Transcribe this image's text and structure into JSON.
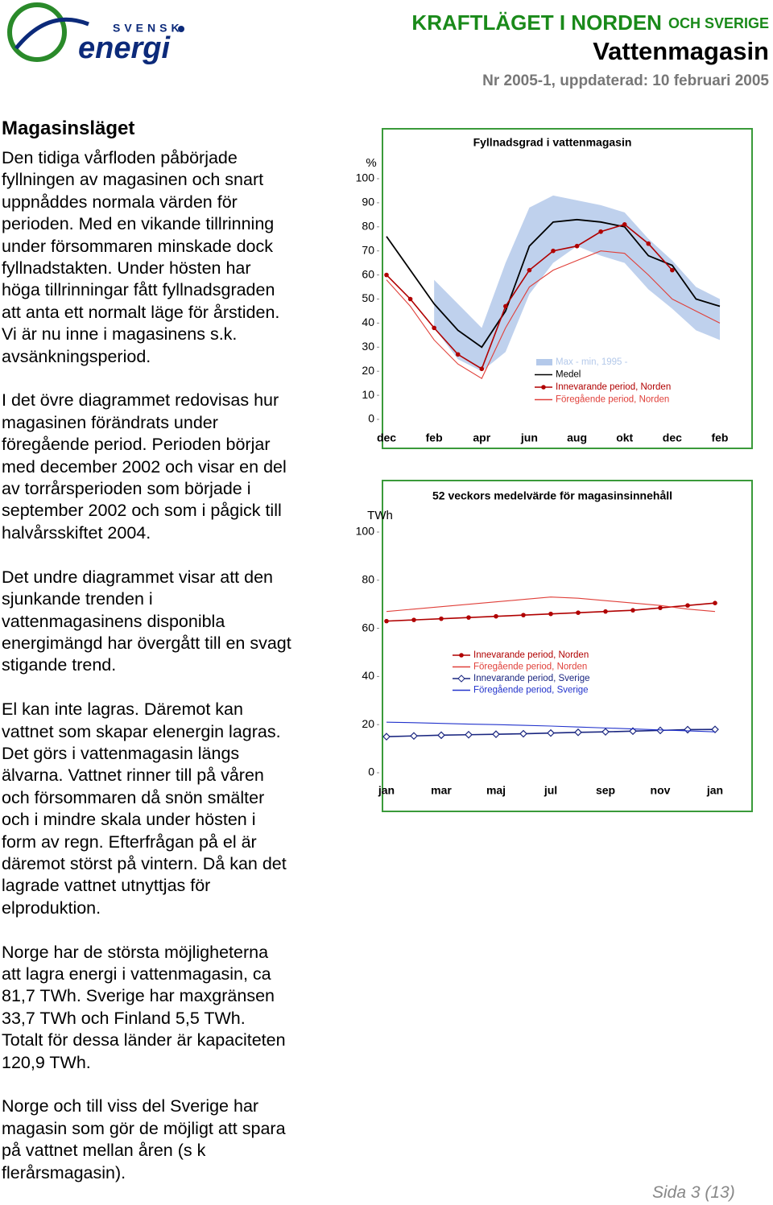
{
  "header": {
    "logo_top": "SVENSK",
    "logo_bottom": "energi",
    "title": "KRAFTLÄGET I NORDEN",
    "title_suffix": "OCH SVERIGE",
    "subtitle": "Vattenmagasin",
    "issue": "Nr 2005-1, uppdaterad: 10 februari 2005"
  },
  "body": {
    "heading": "Magasinsläget",
    "paragraphs": [
      [
        "Den tidiga vårfloden påbörjade",
        "fyllningen av magasinen och snart",
        "uppnåddes normala värden för",
        "perioden. Med en vikande tillrinning",
        "under försommaren minskade dock",
        "fyllnadstakten. Under hösten har",
        "höga tillrinningar fått fyllnadsgraden",
        "att anta ett normalt läge för årstiden.",
        "Vi är nu inne i magasinens s.k.",
        "avsänkningsperiod."
      ],
      [
        "I det övre diagrammet redovisas hur",
        "magasinen förändrats under",
        "föregående period. Perioden börjar",
        "med december 2002 och visar en del",
        "av torrårsperioden som började i",
        "september 2002 och som i pågick till",
        "halvårsskiftet 2004."
      ],
      [
        "Det undre diagrammet visar att den",
        "sjunkande trenden i",
        "vattenmagasinens disponibla",
        "energimängd har övergått till en svagt",
        "stigande trend."
      ],
      [
        "El kan inte lagras. Däremot kan",
        "vattnet som skapar elenergin lagras.",
        "Det görs i vattenmagasin längs",
        "älvarna. Vattnet rinner till på våren",
        "och försommaren då snön smälter",
        "och i mindre skala under hösten i",
        "form av regn. Efterfrågan på el är",
        "däremot störst på vintern. Då kan det",
        "lagrade vattnet utnyttjas för",
        "elproduktion."
      ],
      [
        "Norge har de största möjligheterna",
        "att lagra energi i vattenmagasin, ca",
        "81,7 TWh. Sverige har maxgränsen",
        "33,7 TWh och Finland 5,5 TWh.",
        "Totalt för dessa länder är kapaciteten",
        "120,9 TWh."
      ],
      [
        "Norge och till viss del Sverige har",
        "magasin som gör de möjligt att spara",
        "på vattnet mellan åren (s k",
        "flerårsmagasin)."
      ]
    ]
  },
  "footer": {
    "page": "Sida 3 (13)"
  },
  "chart_data": [
    {
      "type": "line",
      "title": "Fyllnadsgrad i vattenmagasin",
      "ylabel": "%",
      "categories": [
        "dec",
        null,
        "feb",
        null,
        "apr",
        null,
        "jun",
        null,
        "aug",
        null,
        "okt",
        null,
        "dec",
        null,
        "feb"
      ],
      "ylim": [
        0,
        100
      ],
      "yticks": [
        0,
        10,
        20,
        30,
        40,
        50,
        60,
        70,
        80,
        90,
        100
      ],
      "band": {
        "name": "Max - min, 1995 -",
        "color": "#b4c9ea",
        "max": [
          null,
          null,
          58,
          48,
          38,
          65,
          88,
          93,
          91,
          89,
          86,
          75,
          66,
          55,
          50
        ],
        "min": [
          null,
          null,
          38,
          25,
          20,
          28,
          52,
          65,
          72,
          68,
          65,
          54,
          46,
          37,
          33
        ]
      },
      "series": [
        {
          "name": "Medel",
          "color": "#000000",
          "values": [
            76,
            62,
            48,
            37,
            30,
            45,
            72,
            82,
            83,
            82,
            80,
            68,
            64,
            50,
            47
          ]
        },
        {
          "name": "Innevarande period, Norden",
          "color": "#b00000",
          "marker": "circle",
          "values": [
            60,
            50,
            38,
            27,
            21,
            47,
            62,
            70,
            72,
            78,
            81,
            73,
            62,
            null,
            null
          ]
        },
        {
          "name": "Föregående period, Norden",
          "color": "#e0403a",
          "values": [
            58,
            47,
            33,
            23,
            17,
            38,
            55,
            62,
            66,
            70,
            69,
            60,
            50,
            45,
            40
          ]
        }
      ]
    },
    {
      "type": "line",
      "title": "52 veckors medelvärde för magasinsinnehåll",
      "ylabel": "TWh",
      "categories": [
        "jan",
        null,
        "mar",
        null,
        "maj",
        null,
        "jul",
        null,
        "sep",
        null,
        "nov",
        null,
        "jan"
      ],
      "ylim": [
        0,
        100
      ],
      "yticks": [
        0,
        20,
        40,
        60,
        80,
        100
      ],
      "series": [
        {
          "name": "Innevarande period, Norden",
          "color": "#b00000",
          "marker": "circle",
          "values": [
            63,
            63.5,
            64,
            64.5,
            65,
            65.5,
            66,
            66.5,
            67,
            67.5,
            68.5,
            69.5,
            70.5
          ]
        },
        {
          "name": "Föregående period, Norden",
          "color": "#e0403a",
          "values": [
            67,
            68,
            69,
            70,
            71,
            72,
            73,
            72.5,
            71.5,
            70.5,
            69.5,
            68,
            67
          ]
        },
        {
          "name": "Innevarande period, Sverige",
          "color": "#1a2680",
          "marker": "diamond",
          "values": [
            15,
            15.3,
            15.6,
            15.8,
            16,
            16.2,
            16.5,
            16.8,
            17,
            17.3,
            17.6,
            17.9,
            18
          ]
        },
        {
          "name": "Föregående period, Sverige",
          "color": "#2233cc",
          "values": [
            21,
            20.8,
            20.5,
            20.2,
            20,
            19.7,
            19.4,
            19,
            18.6,
            18.2,
            17.8,
            17.4,
            17
          ]
        }
      ]
    }
  ]
}
